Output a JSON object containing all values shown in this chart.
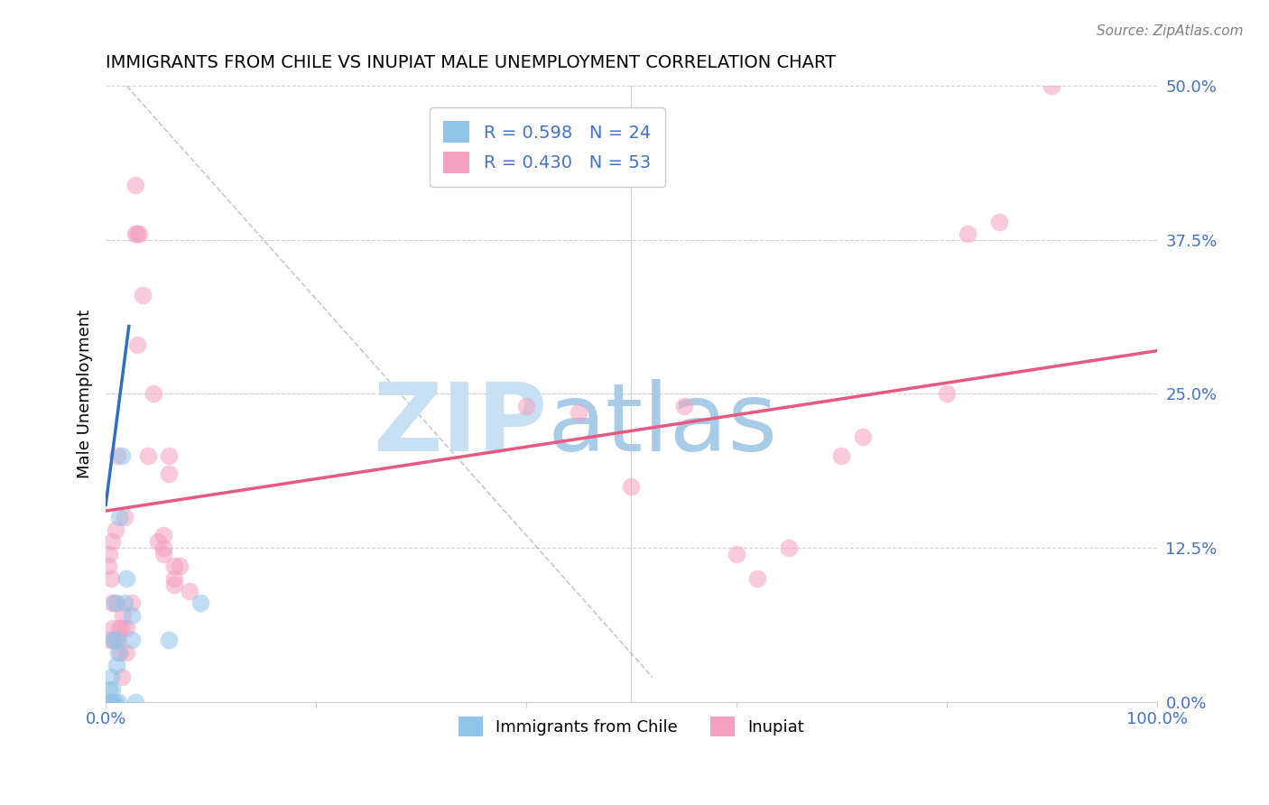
{
  "title": "IMMIGRANTS FROM CHILE VS INUPIAT MALE UNEMPLOYMENT CORRELATION CHART",
  "source": "Source: ZipAtlas.com",
  "ylabel_label": "Male Unemployment",
  "watermark_zip_color": "#c8e0f4",
  "watermark_atlas_color": "#a8cce8",
  "blue_scatter_color": "#90c4e8",
  "pink_scatter_color": "#f4a0c0",
  "blue_line_color": "#3070c0",
  "pink_line_color": "#e85880",
  "diag_line_color": "#a0a0c0",
  "blue_scatter": [
    [
      0.002,
      0.0
    ],
    [
      0.003,
      0.0
    ],
    [
      0.003,
      0.01
    ],
    [
      0.004,
      0.0
    ],
    [
      0.005,
      0.0
    ],
    [
      0.005,
      0.02
    ],
    [
      0.006,
      0.0
    ],
    [
      0.006,
      0.01
    ],
    [
      0.007,
      0.05
    ],
    [
      0.008,
      0.0
    ],
    [
      0.008,
      0.08
    ],
    [
      0.01,
      0.05
    ],
    [
      0.01,
      0.03
    ],
    [
      0.012,
      0.0
    ],
    [
      0.012,
      0.04
    ],
    [
      0.013,
      0.15
    ],
    [
      0.015,
      0.2
    ],
    [
      0.018,
      0.08
    ],
    [
      0.02,
      0.1
    ],
    [
      0.025,
      0.07
    ],
    [
      0.025,
      0.05
    ],
    [
      0.028,
      0.0
    ],
    [
      0.06,
      0.05
    ],
    [
      0.09,
      0.08
    ]
  ],
  "pink_scatter": [
    [
      0.002,
      0.11
    ],
    [
      0.003,
      0.12
    ],
    [
      0.004,
      0.05
    ],
    [
      0.005,
      0.1
    ],
    [
      0.006,
      0.08
    ],
    [
      0.006,
      0.13
    ],
    [
      0.007,
      0.06
    ],
    [
      0.008,
      0.05
    ],
    [
      0.009,
      0.14
    ],
    [
      0.01,
      0.08
    ],
    [
      0.011,
      0.2
    ],
    [
      0.012,
      0.05
    ],
    [
      0.013,
      0.06
    ],
    [
      0.014,
      0.04
    ],
    [
      0.015,
      0.06
    ],
    [
      0.015,
      0.02
    ],
    [
      0.016,
      0.07
    ],
    [
      0.018,
      0.15
    ],
    [
      0.02,
      0.04
    ],
    [
      0.02,
      0.06
    ],
    [
      0.025,
      0.08
    ],
    [
      0.028,
      0.38
    ],
    [
      0.028,
      0.42
    ],
    [
      0.03,
      0.38
    ],
    [
      0.03,
      0.29
    ],
    [
      0.032,
      0.38
    ],
    [
      0.035,
      0.33
    ],
    [
      0.04,
      0.2
    ],
    [
      0.045,
      0.25
    ],
    [
      0.05,
      0.13
    ],
    [
      0.055,
      0.12
    ],
    [
      0.055,
      0.125
    ],
    [
      0.055,
      0.135
    ],
    [
      0.06,
      0.2
    ],
    [
      0.06,
      0.185
    ],
    [
      0.065,
      0.1
    ],
    [
      0.065,
      0.095
    ],
    [
      0.065,
      0.11
    ],
    [
      0.07,
      0.11
    ],
    [
      0.08,
      0.09
    ],
    [
      0.4,
      0.24
    ],
    [
      0.45,
      0.235
    ],
    [
      0.5,
      0.175
    ],
    [
      0.55,
      0.24
    ],
    [
      0.6,
      0.12
    ],
    [
      0.62,
      0.1
    ],
    [
      0.65,
      0.125
    ],
    [
      0.7,
      0.2
    ],
    [
      0.72,
      0.215
    ],
    [
      0.8,
      0.25
    ],
    [
      0.82,
      0.38
    ],
    [
      0.85,
      0.39
    ],
    [
      0.9,
      0.5
    ]
  ],
  "pink_line_x": [
    0.0,
    1.0
  ],
  "pink_line_y": [
    0.155,
    0.285
  ],
  "blue_line_x": [
    0.0,
    0.022
  ],
  "blue_line_y": [
    0.16,
    0.305
  ],
  "diag_line_x": [
    0.02,
    0.52
  ],
  "diag_line_y": [
    0.5,
    0.02
  ],
  "xlim": [
    0.0,
    1.0
  ],
  "ylim": [
    0.0,
    0.5
  ],
  "yticks": [
    0.0,
    0.125,
    0.25,
    0.375,
    0.5
  ],
  "yticklabels": [
    "0.0%",
    "12.5%",
    "25.0%",
    "37.5%",
    "50.0%"
  ],
  "xticks": [
    0.0,
    0.2,
    0.4,
    0.6,
    0.8,
    1.0
  ],
  "xticklabels": [
    "0.0%",
    "",
    "",
    "",
    "",
    "100.0%"
  ],
  "legend1_blue_label": "R = 0.598   N = 24",
  "legend1_pink_label": "R = 0.430   N = 53",
  "legend2_blue_label": "Immigrants from Chile",
  "legend2_pink_label": "Inupiat",
  "tick_color": "#4472c4",
  "grid_color": "#d0d0d0",
  "legend_label_color": "#4472c4"
}
